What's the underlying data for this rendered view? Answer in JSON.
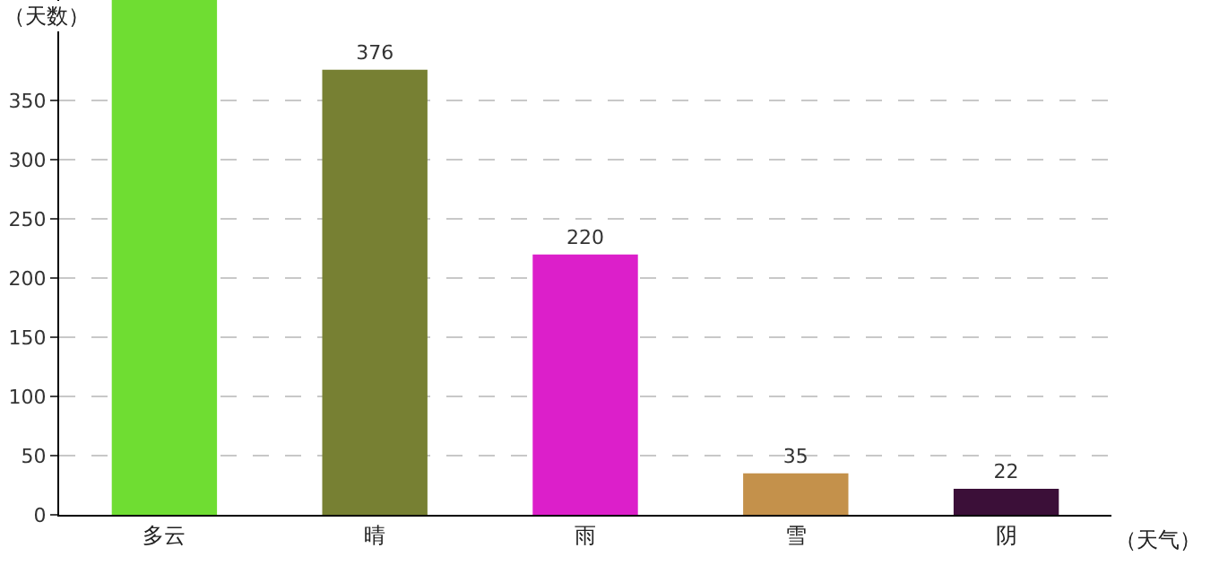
{
  "chart_data": {
    "type": "bar",
    "xlabel": "（天气）",
    "ylabel": "（天数）",
    "categories": [
      "多云",
      "晴",
      "雨",
      "雪",
      "阴"
    ],
    "values": [
      435,
      376,
      220,
      35,
      22
    ],
    "colors": [
      "#6fdd32",
      "#778033",
      "#dc1fca",
      "#c4914b",
      "#3b0f38"
    ],
    "value_labels": [
      null,
      "376",
      "220",
      "35",
      "22"
    ],
    "ylim": [
      0,
      435
    ],
    "yticks": [
      0,
      50,
      100,
      150,
      200,
      250,
      300,
      350
    ],
    "grid": "y"
  }
}
